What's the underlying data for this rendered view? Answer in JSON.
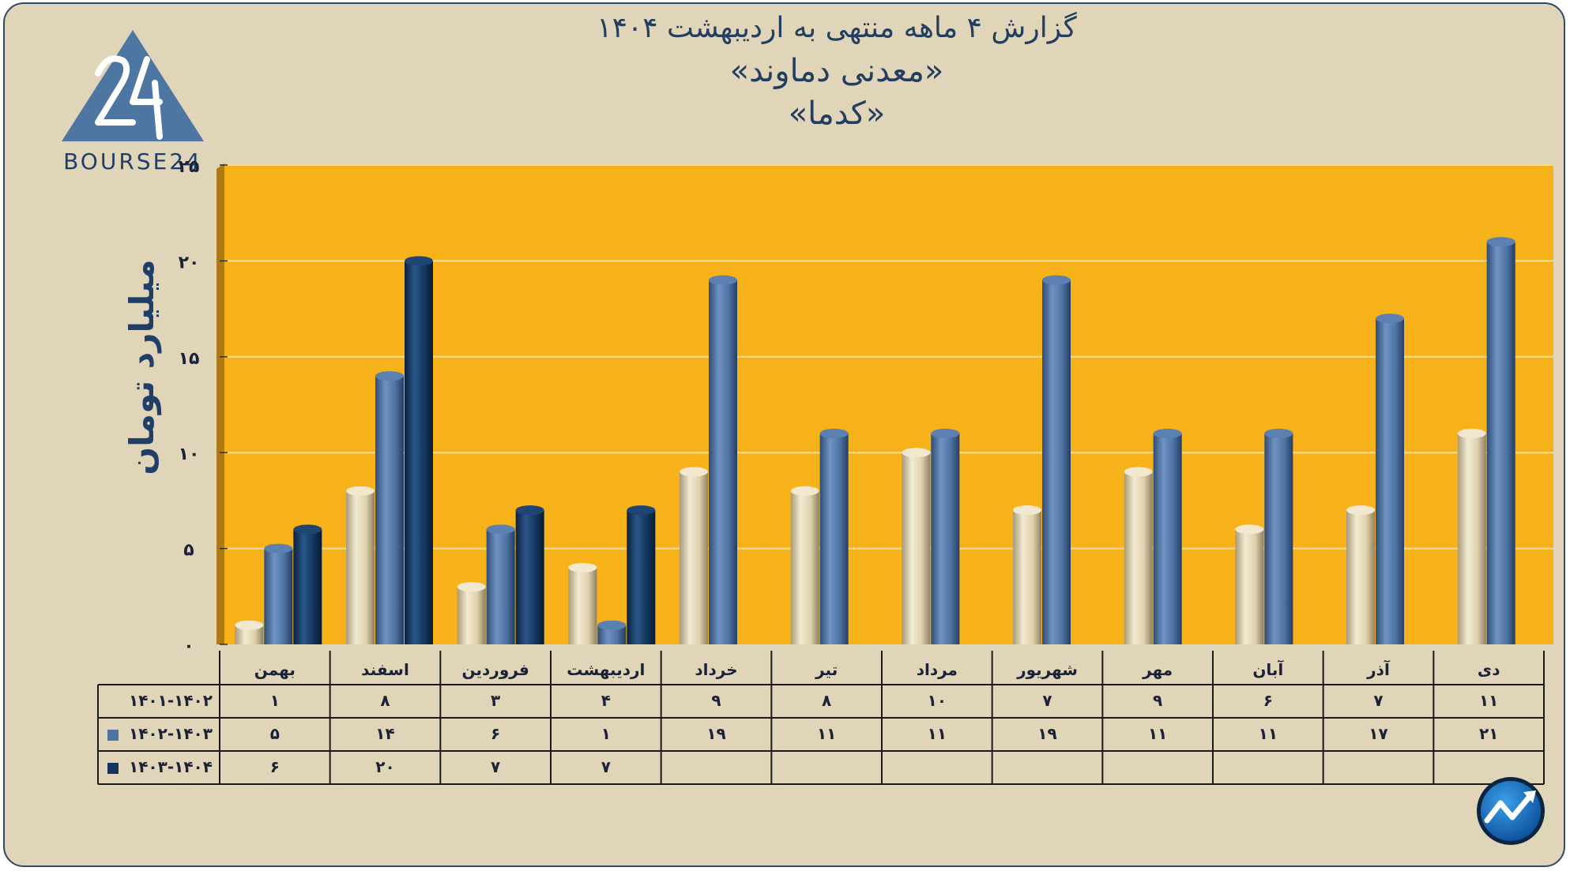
{
  "titles": {
    "line1": "گزارش ۴ ماهه منتهی به اردیبهشت ۱۴۰۴",
    "line2": "«معدنی دماوند»",
    "line3": "«کدما»"
  },
  "logo": {
    "text": "BOURSE24",
    "icon": "bourse24-triangle-logo"
  },
  "badge": {
    "icon": "trend-arrow-badge-icon"
  },
  "colors": {
    "background": "#e0d5b8",
    "plot_area": "#f8b219",
    "series1": "#e3d5b3",
    "series2": "#4f73a3",
    "series3": "#14365e",
    "title": "#233e5e"
  },
  "chart_data": {
    "type": "bar",
    "ylabel": "میلیارد تومان",
    "ylim": [
      0,
      25
    ],
    "yticks": [
      0,
      5,
      10,
      15,
      20,
      25
    ],
    "ytick_labels": [
      "۰",
      "۵",
      "۱۰",
      "۱۵",
      "۲۰",
      "۲۵"
    ],
    "grid": true,
    "categories": [
      "بهمن",
      "اسفند",
      "فروردین",
      "اردیبهشت",
      "خرداد",
      "تیر",
      "مرداد",
      "شهریور",
      "مهر",
      "آبان",
      "آذر",
      "دی"
    ],
    "series": [
      {
        "name": "۱۴۰۱-۱۴۰۲",
        "values": [
          1,
          8,
          3,
          4,
          9,
          8,
          10,
          7,
          9,
          6,
          7,
          11
        ],
        "labels": [
          "۱",
          "۸",
          "۳",
          "۴",
          "۹",
          "۸",
          "۱۰",
          "۷",
          "۹",
          "۶",
          "۷",
          "۱۱"
        ]
      },
      {
        "name": "۱۴۰۲-۱۴۰۳",
        "values": [
          5,
          14,
          6,
          1,
          19,
          11,
          11,
          19,
          11,
          11,
          17,
          21
        ],
        "labels": [
          "۵",
          "۱۴",
          "۶",
          "۱",
          "۱۹",
          "۱۱",
          "۱۱",
          "۱۹",
          "۱۱",
          "۱۱",
          "۱۷",
          "۲۱"
        ]
      },
      {
        "name": "۱۴۰۳-۱۴۰۴",
        "values": [
          6,
          20,
          7,
          7,
          null,
          null,
          null,
          null,
          null,
          null,
          null,
          null
        ],
        "labels": [
          "۶",
          "۲۰",
          "۷",
          "۷",
          "",
          "",
          "",
          "",
          "",
          "",
          "",
          ""
        ]
      }
    ]
  }
}
